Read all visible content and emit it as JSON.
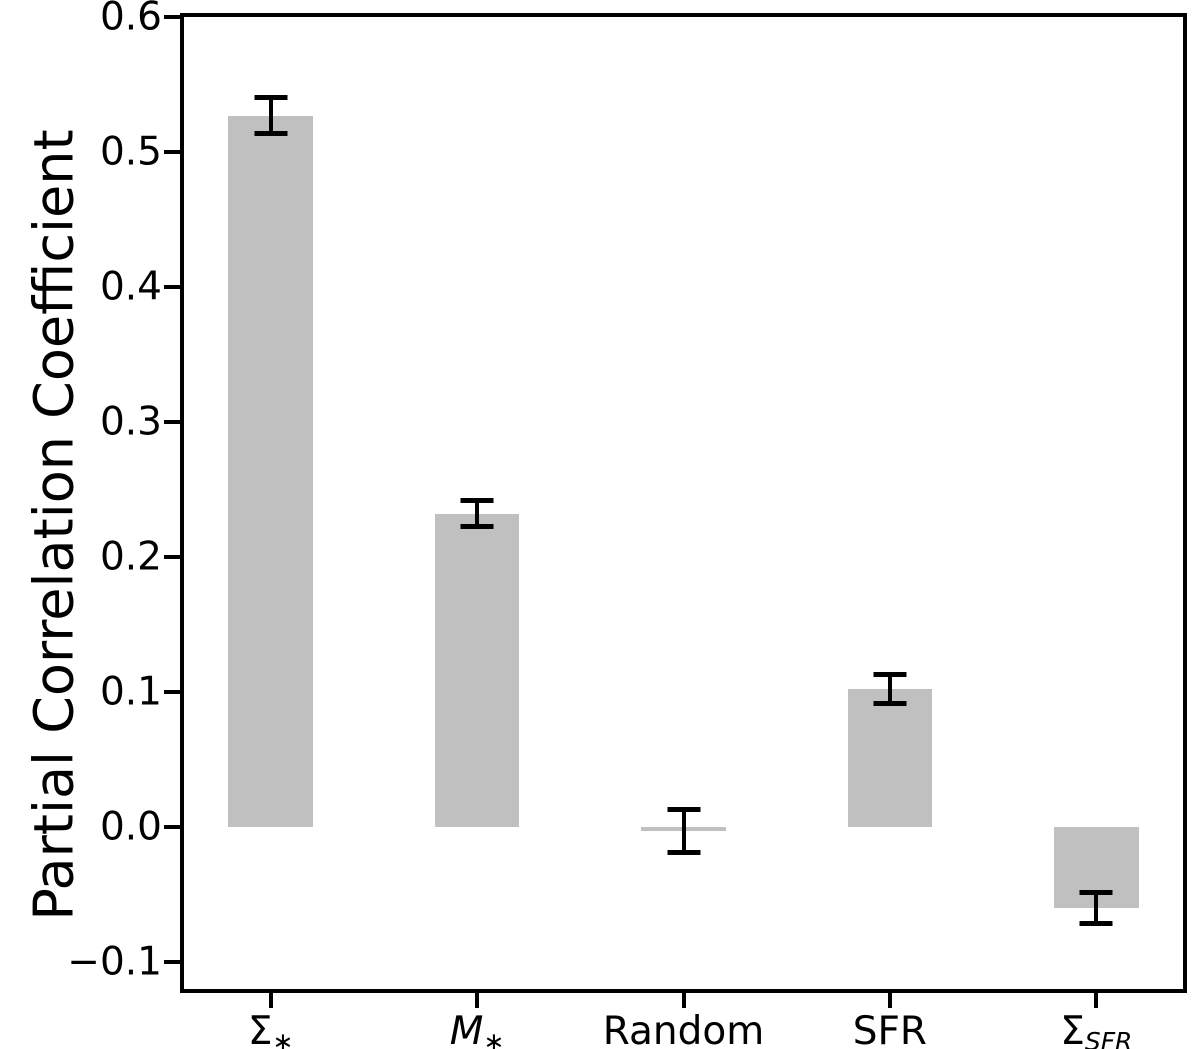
{
  "chart_data": {
    "type": "bar",
    "title": "",
    "xlabel": "",
    "ylabel": "Partial Correlation Coefficient",
    "categories": [
      "Σ∗",
      "M∗",
      "Random",
      "SFR",
      "Σ_SFR"
    ],
    "categories_rich": [
      {
        "slug": "sigma-star",
        "main": "Σ",
        "main_italic": false,
        "sub": "∗",
        "sub_italic": false
      },
      {
        "slug": "m-star",
        "main": "M",
        "main_italic": true,
        "sub": "∗",
        "sub_italic": false
      },
      {
        "slug": "random",
        "main": "Random",
        "main_italic": false,
        "sub": "",
        "sub_italic": false
      },
      {
        "slug": "sfr",
        "main": "SFR",
        "main_italic": false,
        "sub": "",
        "sub_italic": false
      },
      {
        "slug": "sigma-sfr",
        "main": "Σ",
        "main_italic": false,
        "sub": "SFR",
        "sub_italic": true
      }
    ],
    "series": [
      {
        "name": "partial-correlation",
        "values": [
          0.527,
          0.232,
          -0.003,
          0.102,
          -0.06
        ],
        "errors": [
          0.014,
          0.01,
          0.016,
          0.011,
          0.012
        ]
      }
    ],
    "yticks": [
      {
        "label": "0.6",
        "value": 0.6
      },
      {
        "label": "0.5",
        "value": 0.5
      },
      {
        "label": "0.4",
        "value": 0.4
      },
      {
        "label": "0.3",
        "value": 0.3
      },
      {
        "label": "0.2",
        "value": 0.2
      },
      {
        "label": "0.1",
        "value": 0.1
      },
      {
        "label": "0.0",
        "value": 0.0
      },
      {
        "label": "−0.1",
        "value": -0.1
      }
    ],
    "ylim": [
      -0.12,
      0.6
    ],
    "xlim": [
      -0.42,
      4.42
    ],
    "x_positions": [
      0,
      1,
      2,
      3,
      4
    ],
    "bar_width_units": 0.41,
    "bar_color": "#c0c0c0",
    "error_color": "#000000",
    "grid": false,
    "legend": null
  }
}
